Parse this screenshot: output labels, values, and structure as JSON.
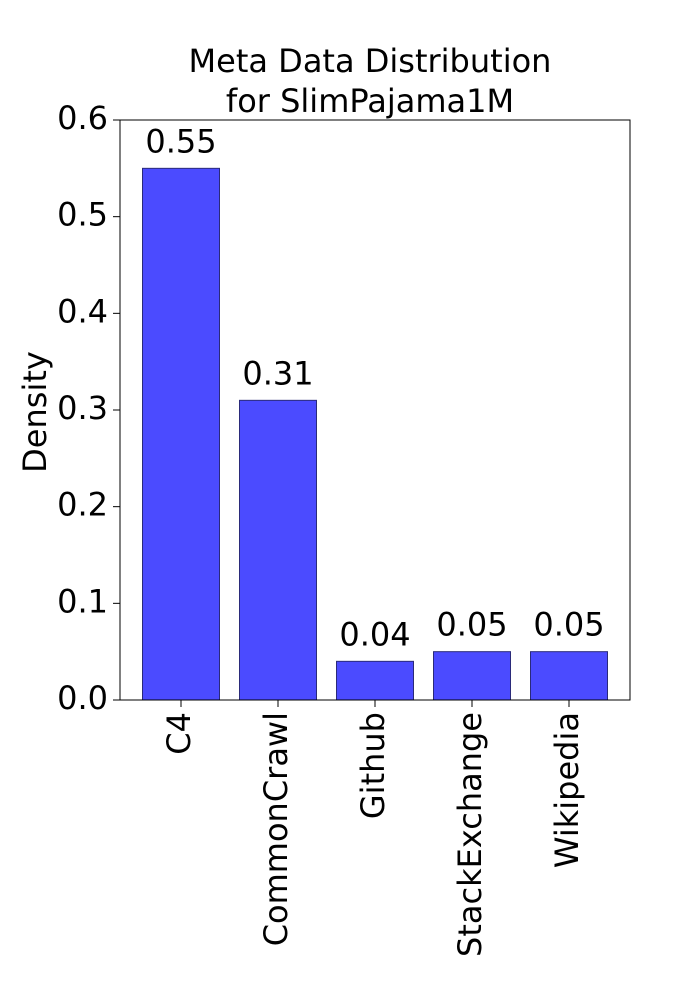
{
  "chart_data": {
    "type": "bar",
    "title": [
      "Meta Data Distribution",
      "for SlimPajama1M"
    ],
    "y_label": "Density",
    "categories": [
      "C4",
      "CommonCrawl",
      "Github",
      "StackExchange",
      "Wikipedia"
    ],
    "values": [
      0.55,
      0.31,
      0.04,
      0.05,
      0.05
    ],
    "color": "#4b4bff",
    "ylim": [
      0,
      0.6
    ],
    "yticks": [
      {
        "value": 0,
        "label": "0.0"
      },
      0.1,
      0.2,
      0.3,
      0.4,
      0.5,
      0.6
    ]
  }
}
